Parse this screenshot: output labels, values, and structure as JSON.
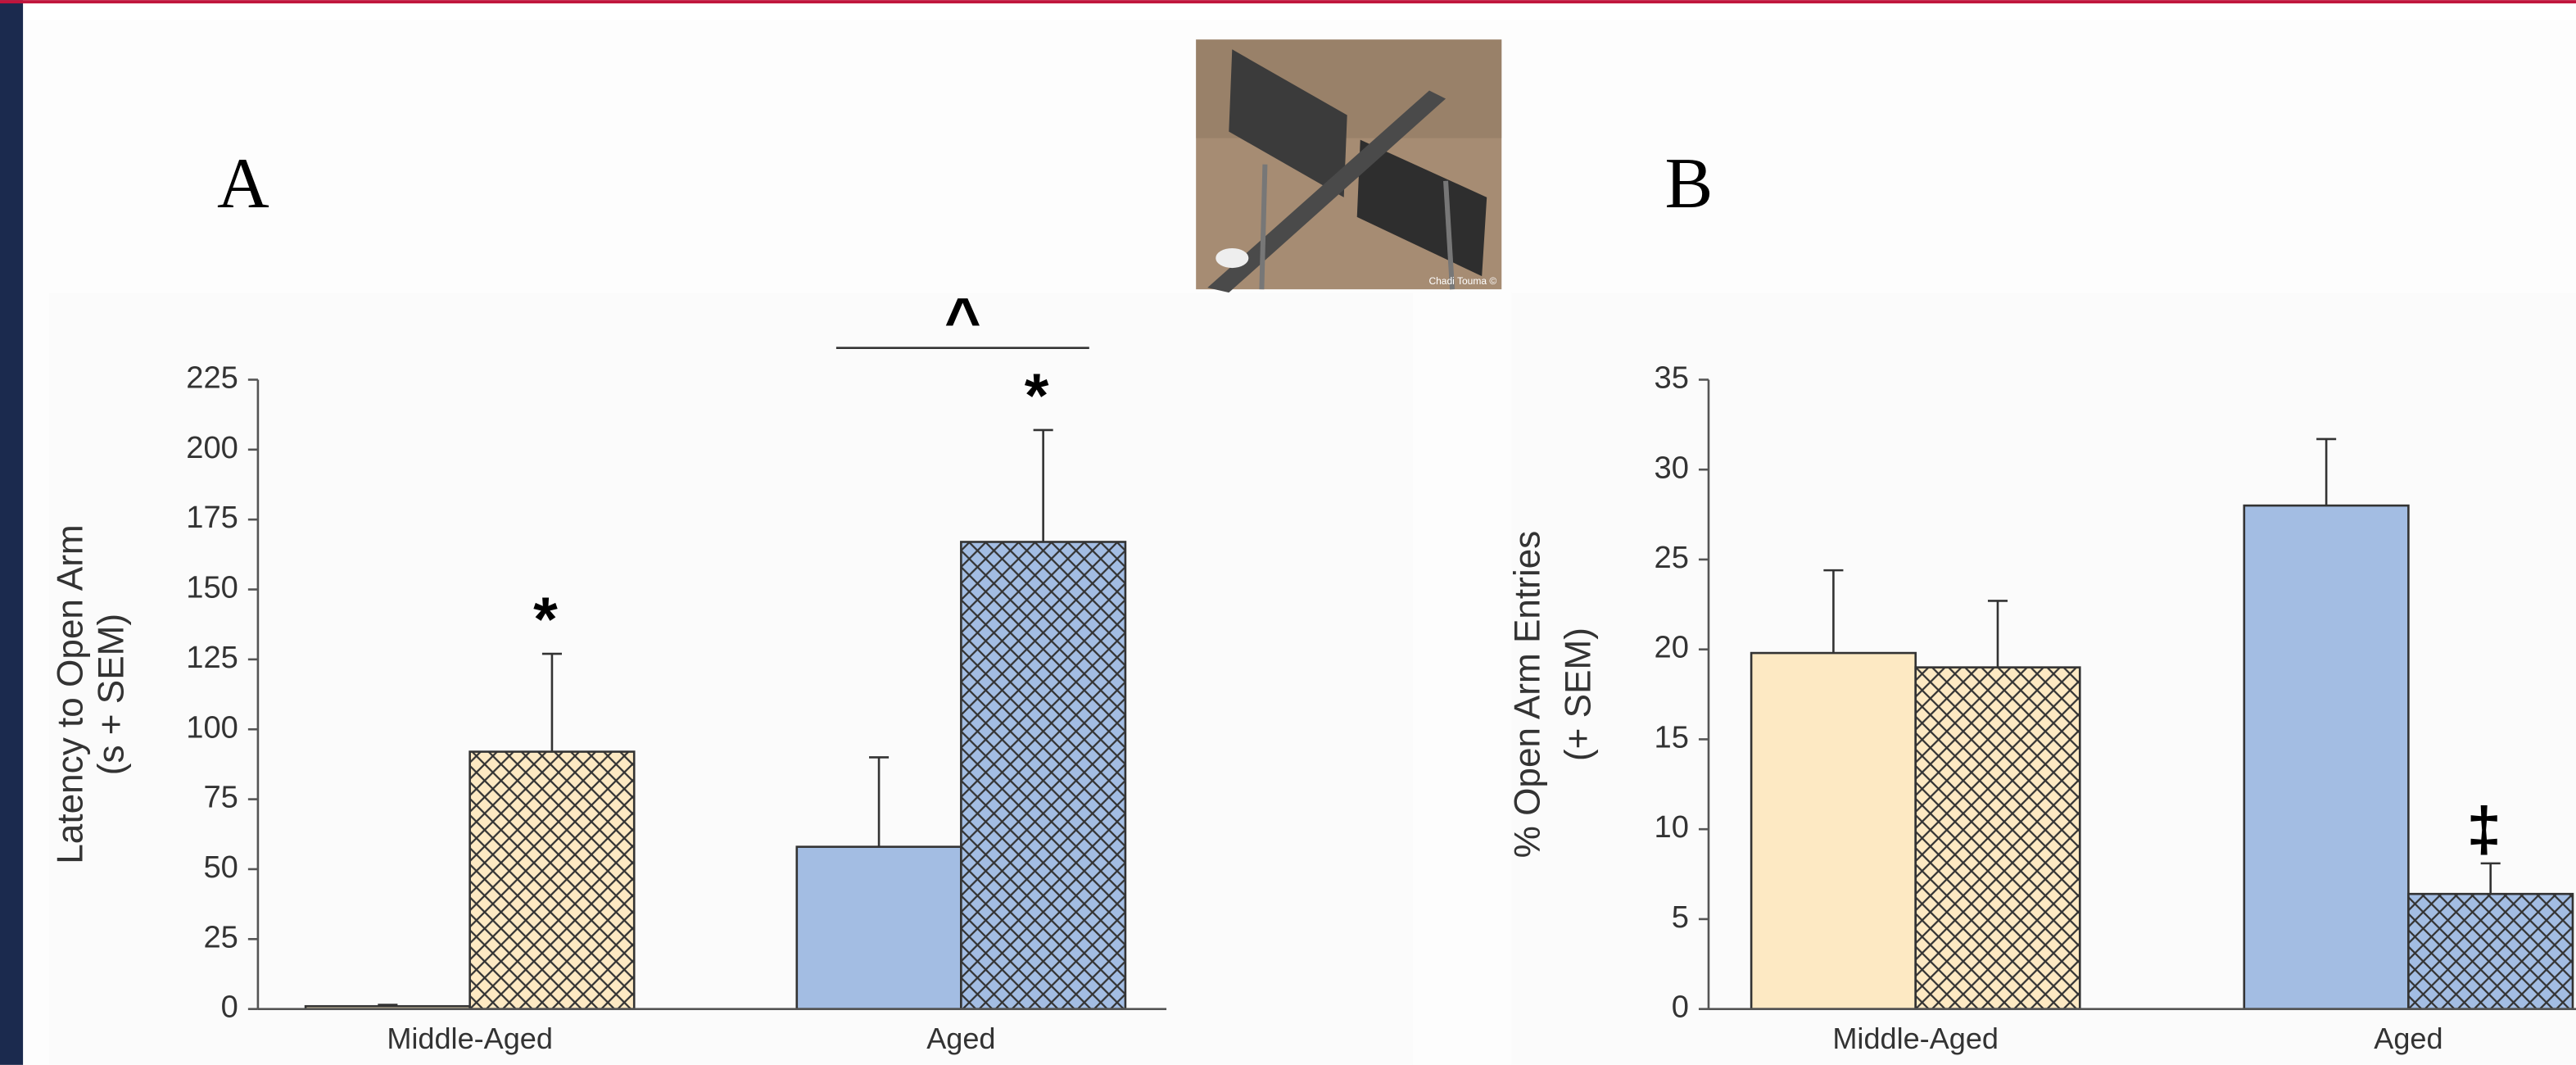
{
  "photo_credit": "Chadi Touma ©",
  "chart_data": [
    {
      "type": "bar",
      "panel": "A",
      "ylabel": [
        "Latency to Open Arm",
        "(s + SEM)"
      ],
      "categories": [
        "Middle-Aged",
        "Aged"
      ],
      "category_colors": [
        "#fde9c3",
        "#a3bde3"
      ],
      "ylim": [
        0,
        225
      ],
      "yticks": [
        0,
        25,
        50,
        75,
        100,
        125,
        150,
        175,
        200,
        225
      ],
      "series": [
        {
          "hatch": false,
          "values": [
            1,
            58
          ],
          "errors": [
            0.5,
            32
          ]
        },
        {
          "hatch": true,
          "values": [
            92,
            167
          ],
          "errors": [
            35,
            40
          ]
        }
      ],
      "annotations": [
        {
          "text": "*",
          "category": 0,
          "series": 1
        },
        {
          "text": "*",
          "category": 1,
          "series": 1
        },
        {
          "text": "^",
          "category": 1
        }
      ]
    },
    {
      "type": "bar",
      "panel": "B",
      "ylabel": [
        "% Open Arm Entries",
        "(+ SEM)"
      ],
      "categories": [
        "Middle-Aged",
        "Aged"
      ],
      "category_colors": [
        "#fde9c3",
        "#a3bde3"
      ],
      "ylim": [
        0,
        35
      ],
      "yticks": [
        0,
        5,
        10,
        15,
        20,
        25,
        30,
        35
      ],
      "series": [
        {
          "hatch": false,
          "values": [
            19.8,
            28
          ],
          "errors": [
            4.6,
            3.7
          ]
        },
        {
          "hatch": true,
          "values": [
            19,
            6.4
          ],
          "errors": [
            3.7,
            1.7
          ]
        }
      ],
      "annotations": [
        {
          "text": "‡",
          "category": 1,
          "series": 1
        }
      ]
    }
  ]
}
